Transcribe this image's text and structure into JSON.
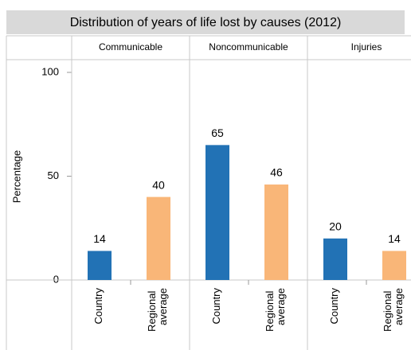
{
  "chart_data": {
    "type": "bar",
    "title": "Distribution of years of life lost by causes (2012)",
    "y_label": "Percentage",
    "categories": [
      "Communicable",
      "Noncommunicable",
      "Injuries"
    ],
    "series": [
      {
        "name": "Country",
        "color": "#2272b5",
        "values": [
          14,
          65,
          20
        ]
      },
      {
        "name": "Regional average",
        "color": "#f9b678",
        "values": [
          40,
          46,
          14
        ]
      }
    ],
    "ylim": [
      0,
      100
    ],
    "yticks": [
      0,
      50,
      100
    ]
  }
}
